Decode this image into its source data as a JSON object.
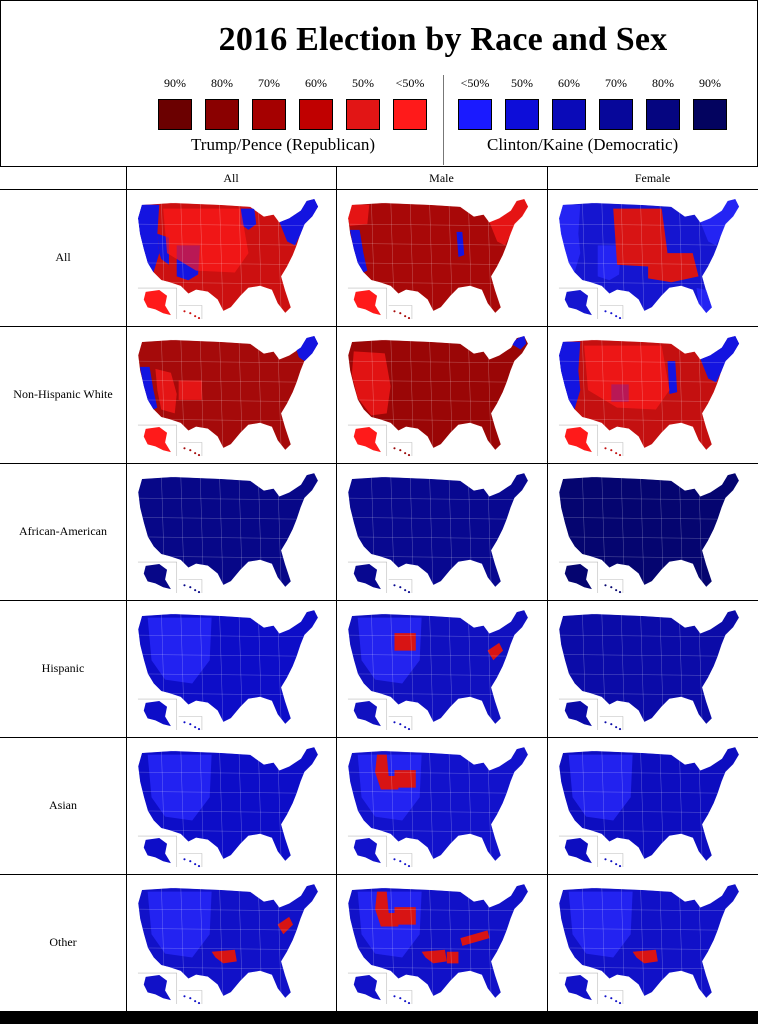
{
  "title": "2016 Election by Race and Sex",
  "legend": {
    "republican": {
      "caption": "Trump/Pence (Republican)",
      "items": [
        {
          "label": "90%",
          "color": "#6b0000"
        },
        {
          "label": "80%",
          "color": "#8a0000"
        },
        {
          "label": "70%",
          "color": "#a50000"
        },
        {
          "label": "60%",
          "color": "#c00000"
        },
        {
          "label": "50%",
          "color": "#e21515"
        },
        {
          "label": "<50%",
          "color": "#ff1a1a"
        }
      ]
    },
    "democratic": {
      "caption": "Clinton/Kaine (Democratic)",
      "items": [
        {
          "label": "<50%",
          "color": "#1a1aff"
        },
        {
          "label": "50%",
          "color": "#0d0dd9"
        },
        {
          "label": "60%",
          "color": "#0a0ab8"
        },
        {
          "label": "70%",
          "color": "#07079a"
        },
        {
          "label": "80%",
          "color": "#050580"
        },
        {
          "label": "90%",
          "color": "#03035f"
        }
      ]
    }
  },
  "columns": [
    "All",
    "Male",
    "Female"
  ],
  "rows": [
    {
      "label": "All",
      "maps": [
        {
          "base": "#cc1010",
          "blue": [
            "west-coast",
            "northeast",
            "upper-midwest",
            "southwest",
            "nevada"
          ],
          "red": [
            "center"
          ]
        },
        {
          "base": "#a80808",
          "blue": [
            "california-coast",
            "illinois-strip"
          ],
          "red": [
            "west-coast-north",
            "northeast"
          ]
        },
        {
          "base": "#1515d0",
          "blue": [
            "west-coast",
            "northeast",
            "southwest",
            "florida"
          ],
          "red": [
            "plains",
            "south-central"
          ]
        }
      ]
    },
    {
      "label": "Non-Hispanic White",
      "maps": [
        {
          "base": "#a50a0a",
          "blue": [
            "california-coast",
            "new-england"
          ],
          "red": [
            "nevada-bright",
            "colorado-bright"
          ]
        },
        {
          "base": "#9a0606",
          "blue": [
            "new-england-small"
          ],
          "red": [
            "west-bright"
          ]
        },
        {
          "base": "#c41010",
          "blue": [
            "west-coast",
            "northeast",
            "colorado",
            "illinois"
          ],
          "red": [
            "center"
          ]
        }
      ]
    },
    {
      "label": "African-American",
      "maps": [
        {
          "base": "#070788",
          "blue": [],
          "red": []
        },
        {
          "base": "#080890",
          "blue": [],
          "red": []
        },
        {
          "base": "#050570",
          "blue": [],
          "red": []
        }
      ]
    },
    {
      "label": "Hispanic",
      "maps": [
        {
          "base": "#0d0dc8",
          "blue": [
            "west-light"
          ],
          "red": []
        },
        {
          "base": "#1010c0",
          "blue": [
            "west-light"
          ],
          "red": [
            "wyoming",
            "west-virginia"
          ]
        },
        {
          "base": "#0b0ba8",
          "blue": [],
          "red": []
        }
      ]
    },
    {
      "label": "Asian",
      "maps": [
        {
          "base": "#0d0dc8",
          "blue": [
            "west-light"
          ],
          "red": []
        },
        {
          "base": "#1212cc",
          "blue": [
            "west-light"
          ],
          "red": [
            "idaho",
            "wyoming"
          ]
        },
        {
          "base": "#0d0dc0",
          "blue": [
            "west-light"
          ],
          "red": []
        }
      ]
    },
    {
      "label": "Other",
      "maps": [
        {
          "base": "#1111c8",
          "blue": [
            "west-light"
          ],
          "red": [
            "oklahoma",
            "west-virginia"
          ]
        },
        {
          "base": "#1111c8",
          "blue": [
            "west-light"
          ],
          "red": [
            "idaho",
            "wyoming",
            "oklahoma",
            "arkansas",
            "kentucky"
          ]
        },
        {
          "base": "#1111c8",
          "blue": [
            "west-light"
          ],
          "red": [
            "oklahoma"
          ]
        }
      ]
    }
  ]
}
